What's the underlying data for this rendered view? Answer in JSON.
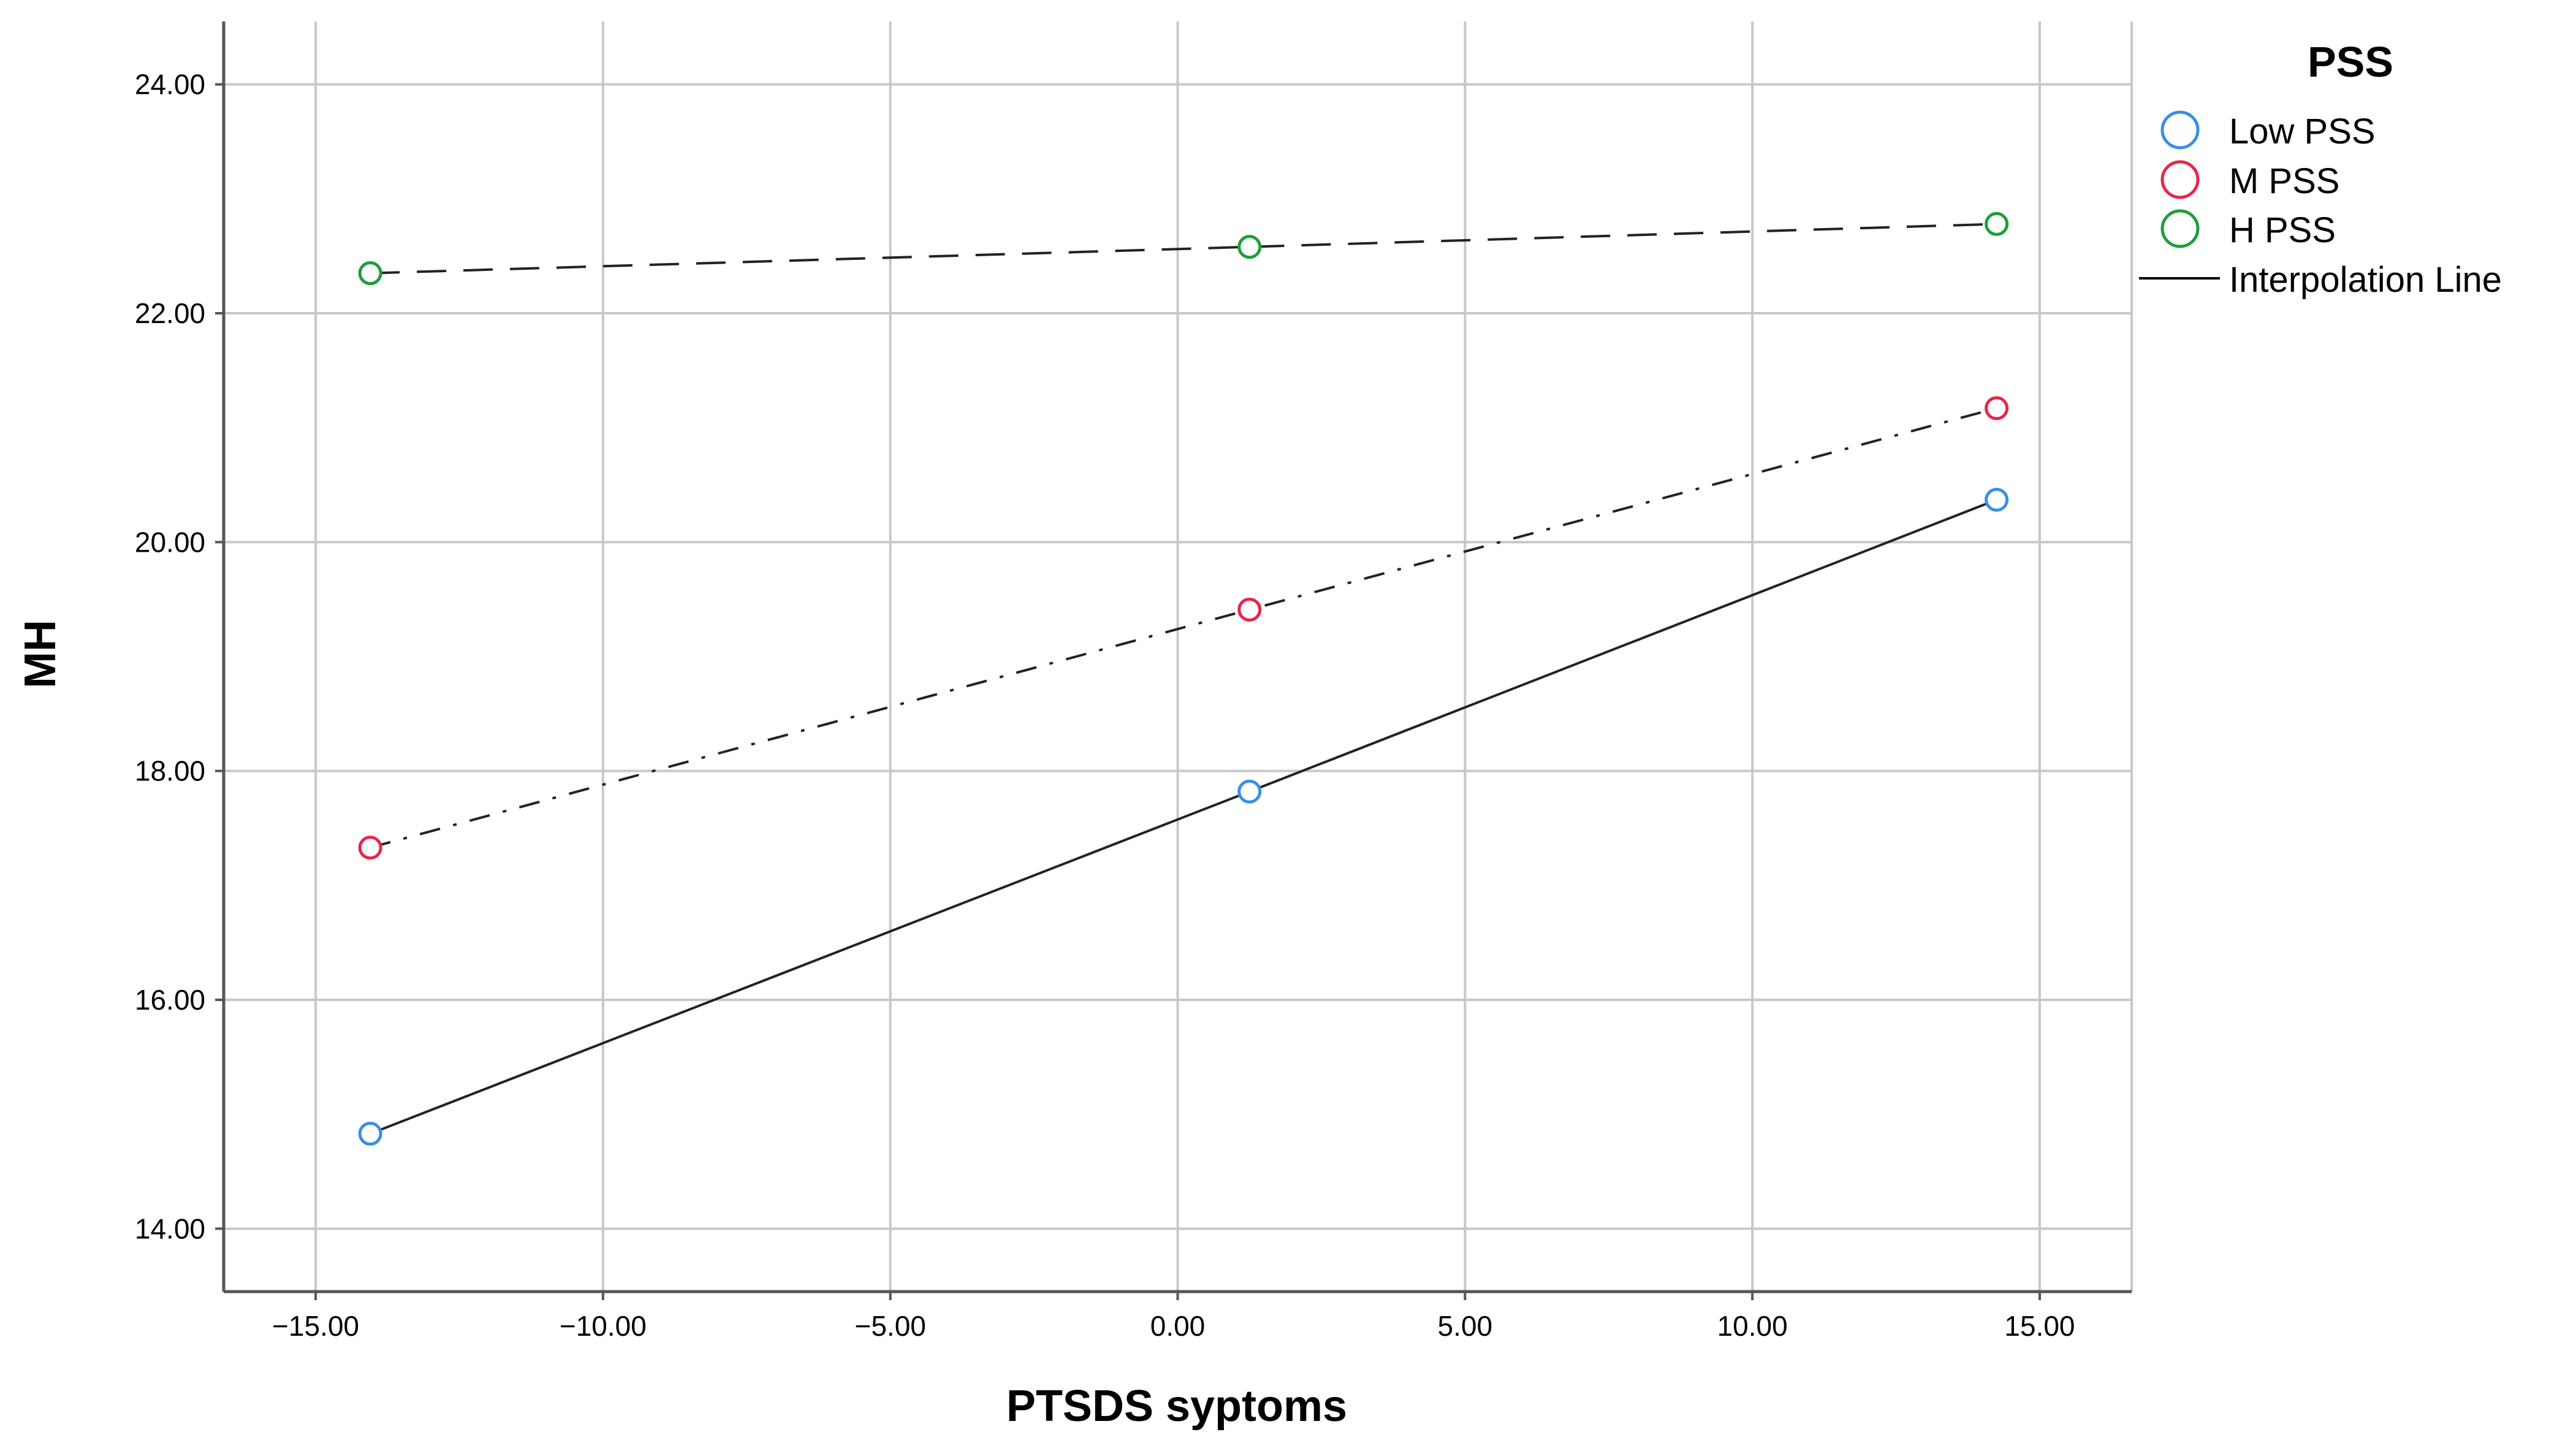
{
  "chart_data": {
    "type": "line",
    "xlabel": "PTSDS syptoms",
    "ylabel": "MH",
    "xlim": [
      -16.6,
      16.6
    ],
    "ylim": [
      13.45,
      24.55
    ],
    "x_ticks": [
      -15,
      -10,
      -5,
      0,
      5,
      10,
      15
    ],
    "x_tick_labels": [
      "−15.00",
      "−10.00",
      "−5.00",
      "0.00",
      "5.00",
      "10.00",
      "15.00"
    ],
    "y_ticks": [
      14,
      16,
      18,
      20,
      22,
      24
    ],
    "y_tick_labels": [
      "14.00",
      "16.00",
      "18.00",
      "20.00",
      "22.00",
      "24.00"
    ],
    "grid": true,
    "legend": {
      "title": "PSS",
      "placement": "right",
      "entries": [
        "Low PSS",
        "M PSS",
        "H PSS",
        "Interpolation Line"
      ]
    },
    "series": [
      {
        "name": "Low PSS",
        "color": "#3a8ee6",
        "line_style": "solid",
        "x": [
          -14.05,
          1.25,
          14.25
        ],
        "y": [
          14.83,
          17.82,
          20.37
        ]
      },
      {
        "name": "M PSS",
        "color": "#e8254a",
        "line_style": "dash-dot",
        "x": [
          -14.05,
          1.25,
          14.25
        ],
        "y": [
          17.33,
          19.41,
          21.17
        ]
      },
      {
        "name": "H PSS",
        "color": "#1e9e3a",
        "line_style": "dashed",
        "x": [
          -14.05,
          1.25,
          14.25
        ],
        "y": [
          22.35,
          22.58,
          22.78
        ]
      }
    ]
  }
}
